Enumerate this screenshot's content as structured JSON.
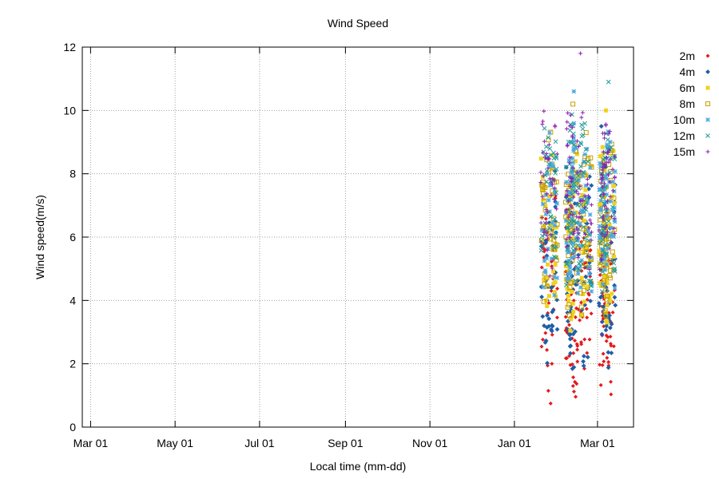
{
  "chart_data": {
    "type": "scatter",
    "title": "Wind Speed",
    "xlabel": "Local time (mm-dd)",
    "ylabel": "Wind speed(m/s)",
    "xlim": [
      "2023-02-23",
      "2024-03-27"
    ],
    "ylim": [
      0,
      12
    ],
    "x_ticks": [
      {
        "date": "2023-03-01",
        "label": "Mar 01"
      },
      {
        "date": "2023-05-01",
        "label": "May 01"
      },
      {
        "date": "2023-07-01",
        "label": "Jul 01"
      },
      {
        "date": "2023-09-01",
        "label": "Sep 01"
      },
      {
        "date": "2023-11-01",
        "label": "Nov 01"
      },
      {
        "date": "2024-01-01",
        "label": "Jan 01"
      },
      {
        "date": "2024-03-01",
        "label": "Mar 01"
      }
    ],
    "y_ticks": [
      "0",
      "2",
      "4",
      "6",
      "8",
      "10",
      "12"
    ],
    "grid": true,
    "legend_position": "top-right, outside plot",
    "data_range": {
      "start": "2024-01-20",
      "end": "2024-03-14"
    },
    "series": [
      {
        "name": "2m",
        "color": "#e41a1c",
        "marker": "diamond-filled",
        "typical_range": [
          0.5,
          7.5
        ],
        "max": 8.5
      },
      {
        "name": "4m",
        "color": "#1f5fa8",
        "marker": "diamond",
        "typical_range": [
          1.5,
          8.5
        ],
        "max": 9.5
      },
      {
        "name": "6m",
        "color": "#f0d21e",
        "marker": "square-filled",
        "typical_range": [
          3.0,
          9.0
        ],
        "max": 10.0
      },
      {
        "name": "8m",
        "color": "#c8a000",
        "marker": "square-open",
        "typical_range": [
          3.5,
          9.5
        ],
        "max": 10.2
      },
      {
        "name": "10m",
        "color": "#4aa8e0",
        "marker": "asterisk",
        "typical_range": [
          4.0,
          9.8
        ],
        "max": 10.6
      },
      {
        "name": "12m",
        "color": "#1f9a9a",
        "marker": "x",
        "typical_range": [
          4.2,
          10.0
        ],
        "max": 10.9
      },
      {
        "name": "15m",
        "color": "#8a1fb0",
        "marker": "plus",
        "typical_range": [
          4.5,
          10.3
        ],
        "max": 11.8
      }
    ]
  }
}
